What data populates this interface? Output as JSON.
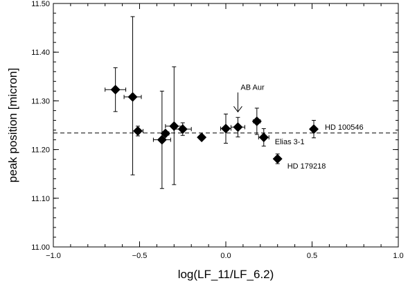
{
  "chart_data": {
    "type": "scatter",
    "title": "",
    "xlabel": "log(LF_11/LF_6.2)",
    "ylabel": "peak position [micron]",
    "xlim": [
      -1.0,
      1.0
    ],
    "ylim": [
      11.0,
      11.5
    ],
    "x_ticks": [
      -1.0,
      -0.5,
      0.0,
      0.5,
      1.0
    ],
    "x_tick_labels": [
      "−1.0",
      "−0.5",
      "0.0",
      "0.5",
      "1.0"
    ],
    "y_ticks": [
      11.0,
      11.1,
      11.2,
      11.3,
      11.4,
      11.5
    ],
    "y_tick_labels": [
      "11.00",
      "11.10",
      "11.20",
      "11.30",
      "11.40",
      "11.50"
    ],
    "reference_line": {
      "y": 11.234,
      "style": "dashed"
    },
    "points": [
      {
        "x": -0.64,
        "y": 11.323,
        "xerr": 0.06,
        "yerr": [
          0.045,
          0.045
        ]
      },
      {
        "x": -0.54,
        "y": 11.308,
        "xerr": 0.05,
        "yerr": [
          0.16,
          0.165
        ]
      },
      {
        "x": -0.51,
        "y": 11.238,
        "xerr": 0.03,
        "yerr": [
          0.01,
          0.01
        ]
      },
      {
        "x": -0.37,
        "y": 11.22,
        "xerr": 0.05,
        "yerr": [
          0.1,
          0.1
        ]
      },
      {
        "x": -0.35,
        "y": 11.233,
        "xerr": 0.02,
        "yerr": [
          0.0,
          0.0
        ]
      },
      {
        "x": -0.3,
        "y": 11.248,
        "xerr": 0.05,
        "yerr": [
          0.12,
          0.122
        ]
      },
      {
        "x": -0.25,
        "y": 11.242,
        "xerr": 0.05,
        "yerr": [
          0.013,
          0.013
        ]
      },
      {
        "x": -0.14,
        "y": 11.225,
        "xerr": 0.0,
        "yerr": [
          0.0,
          0.0
        ]
      },
      {
        "x": 0.0,
        "y": 11.243,
        "xerr": 0.03,
        "yerr": [
          0.03,
          0.03
        ]
      },
      {
        "x": 0.07,
        "y": 11.246,
        "xerr": 0.04,
        "yerr": [
          0.02,
          0.02
        ]
      },
      {
        "x": 0.18,
        "y": 11.258,
        "xerr": 0.02,
        "yerr": [
          0.027,
          0.027
        ]
      },
      {
        "x": 0.22,
        "y": 11.225,
        "xerr": 0.03,
        "yerr": [
          0.018,
          0.018
        ]
      },
      {
        "x": 0.3,
        "y": 11.181,
        "xerr": 0.0,
        "yerr": [
          0.01,
          0.01
        ]
      },
      {
        "x": 0.51,
        "y": 11.242,
        "xerr": 0.0,
        "yerr": [
          0.018,
          0.018
        ]
      }
    ],
    "annotations": [
      {
        "text": "AB Aur",
        "x": 0.07,
        "y": 11.246,
        "arrow": true
      },
      {
        "text": "HD 100546",
        "x": 0.51,
        "y": 11.242
      },
      {
        "text": "Elias 3-1",
        "x": 0.22,
        "y": 11.225
      },
      {
        "text": "HD 179218",
        "x": 0.3,
        "y": 11.181
      }
    ]
  }
}
